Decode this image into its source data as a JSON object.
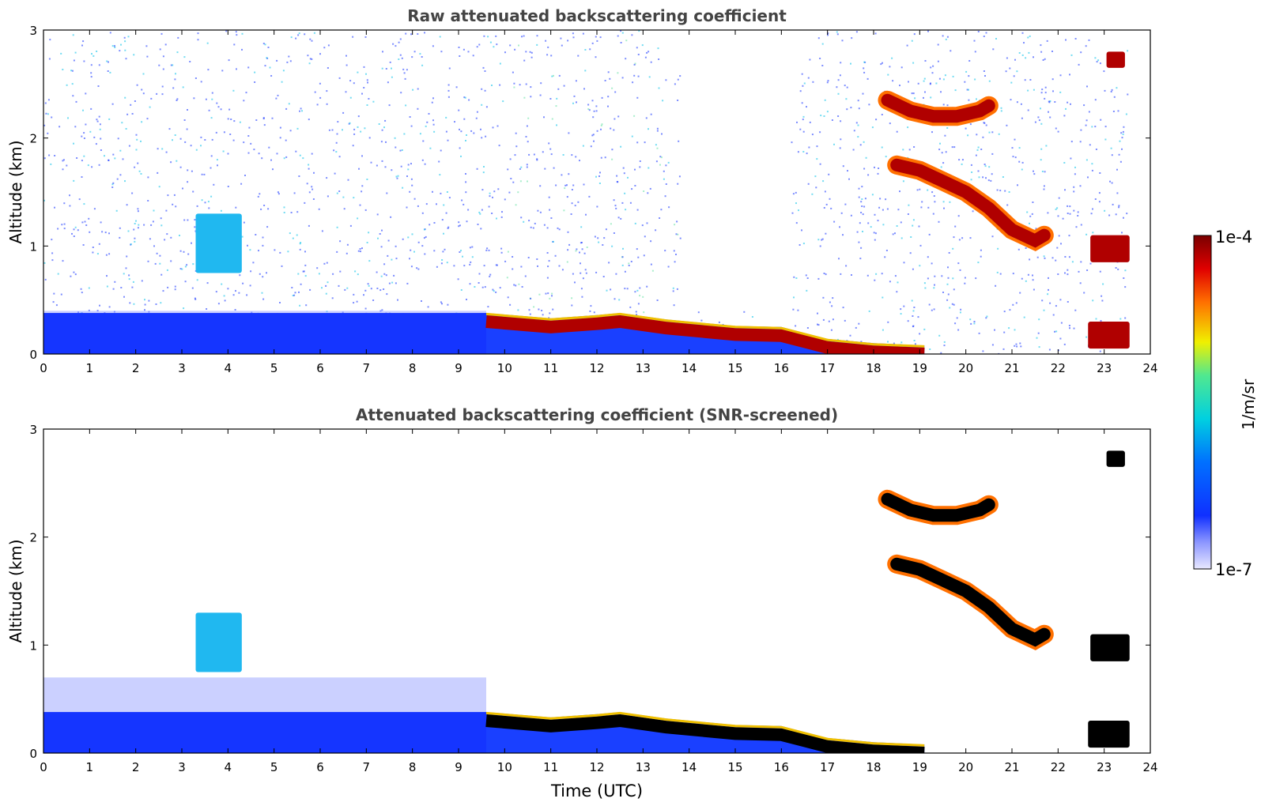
{
  "chart_data": [
    {
      "type": "heatmap",
      "title": "Raw attenuated backscattering coefficient",
      "xlabel": "",
      "ylabel": "Altitude (km)",
      "xlim": [
        0,
        24
      ],
      "ylim": [
        0,
        3
      ],
      "x_ticks": [
        "0",
        "1",
        "2",
        "3",
        "4",
        "5",
        "6",
        "7",
        "8",
        "9",
        "10",
        "11",
        "12",
        "13",
        "14",
        "15",
        "16",
        "17",
        "18",
        "19",
        "20",
        "21",
        "22",
        "23",
        "24"
      ],
      "y_ticks": [
        "0",
        "1",
        "2",
        "3"
      ],
      "noise_background": true,
      "features": [
        {
          "name": "boundary-layer-haze",
          "x0": 0,
          "x1": 9.6,
          "y0": 0.0,
          "y1": 0.4,
          "level": "low"
        },
        {
          "name": "aerosol-plume",
          "x0": 3.3,
          "x1": 4.3,
          "y0": 0.75,
          "y1": 1.3,
          "level": "mid"
        },
        {
          "name": "aerosol-layer-top",
          "x": [
            9.6,
            11,
            12,
            12.5,
            13.5,
            15,
            16,
            17,
            18,
            19.1
          ],
          "top": [
            0.38,
            0.33,
            0.36,
            0.38,
            0.32,
            0.26,
            0.25,
            0.14,
            0.1,
            0.08
          ],
          "level": "high"
        },
        {
          "name": "upper-cloud",
          "x": [
            18.3,
            18.8,
            19.3,
            19.8,
            20.3,
            20.5
          ],
          "alt": [
            2.35,
            2.25,
            2.2,
            2.2,
            2.25,
            2.3
          ],
          "level": "high"
        },
        {
          "name": "descending-cloud",
          "x": [
            18.5,
            19,
            19.5,
            20,
            20.5,
            21,
            21.5,
            21.7
          ],
          "alt": [
            1.75,
            1.7,
            1.6,
            1.5,
            1.35,
            1.15,
            1.05,
            1.1
          ],
          "level": "high"
        },
        {
          "name": "cloud-23h-low",
          "x0": 22.7,
          "x1": 23.55,
          "y0": 0.85,
          "y1": 1.1,
          "level": "high"
        },
        {
          "name": "cloud-23h-high",
          "x0": 23.05,
          "x1": 23.45,
          "y0": 2.65,
          "y1": 2.8,
          "level": "high"
        },
        {
          "name": "surface-layer-23h",
          "x0": 22.65,
          "x1": 23.55,
          "y0": 0.05,
          "y1": 0.3,
          "level": "high"
        }
      ]
    },
    {
      "type": "heatmap",
      "title": "Attenuated backscattering coefficient (SNR-screened)",
      "xlabel": "Time (UTC)",
      "ylabel": "Altitude (km)",
      "xlim": [
        0,
        24
      ],
      "ylim": [
        0,
        3
      ],
      "x_ticks": [
        "0",
        "1",
        "2",
        "3",
        "4",
        "5",
        "6",
        "7",
        "8",
        "9",
        "10",
        "11",
        "12",
        "13",
        "14",
        "15",
        "16",
        "17",
        "18",
        "19",
        "20",
        "21",
        "22",
        "23",
        "24"
      ],
      "y_ticks": [
        "0",
        "1",
        "2",
        "3"
      ],
      "noise_background": false,
      "features": [
        {
          "name": "boundary-layer-haze",
          "x0": 0,
          "x1": 9.6,
          "y0": 0.0,
          "y1": 0.7,
          "level": "low"
        },
        {
          "name": "aerosol-plume",
          "x0": 3.3,
          "x1": 4.3,
          "y0": 0.75,
          "y1": 1.3,
          "level": "mid"
        },
        {
          "name": "aerosol-layer-top",
          "x": [
            9.6,
            11,
            12,
            12.5,
            13.5,
            15,
            16,
            17,
            18,
            19.1
          ],
          "top": [
            0.38,
            0.33,
            0.36,
            0.38,
            0.32,
            0.26,
            0.25,
            0.14,
            0.1,
            0.08
          ],
          "level": "saturated"
        },
        {
          "name": "upper-cloud",
          "x": [
            18.3,
            18.8,
            19.3,
            19.8,
            20.3,
            20.5
          ],
          "alt": [
            2.35,
            2.25,
            2.2,
            2.2,
            2.25,
            2.3
          ],
          "level": "saturated"
        },
        {
          "name": "descending-cloud",
          "x": [
            18.5,
            19,
            19.5,
            20,
            20.5,
            21,
            21.5,
            21.7
          ],
          "alt": [
            1.75,
            1.7,
            1.6,
            1.5,
            1.35,
            1.15,
            1.05,
            1.1
          ],
          "level": "saturated"
        },
        {
          "name": "cloud-23h-low",
          "x0": 22.7,
          "x1": 23.55,
          "y0": 0.85,
          "y1": 1.1,
          "level": "saturated"
        },
        {
          "name": "cloud-23h-high",
          "x0": 23.05,
          "x1": 23.45,
          "y0": 2.65,
          "y1": 2.8,
          "level": "saturated"
        },
        {
          "name": "surface-layer-23h",
          "x0": 22.65,
          "x1": 23.55,
          "y0": 0.05,
          "y1": 0.3,
          "level": "saturated"
        }
      ]
    }
  ],
  "colorbar": {
    "label": "1/m/sr",
    "max_label": "1e-4",
    "min_label": "1e-7",
    "range": [
      1e-07,
      0.0001
    ],
    "colors": [
      "#e8e8ff",
      "#2040ff",
      "#00c8e8",
      "#f0f000",
      "#ff3000",
      "#8a0000"
    ]
  }
}
